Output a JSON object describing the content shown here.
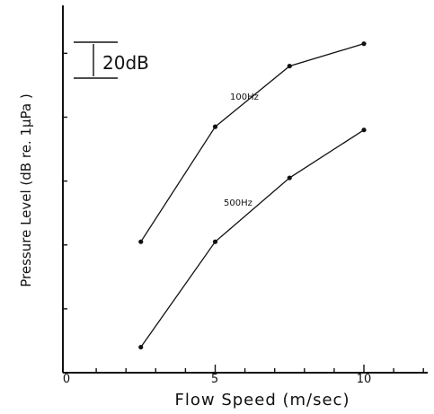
{
  "chart_data": {
    "type": "line",
    "xlabel": "Flow Speed (m/sec)",
    "ylabel": "Pressure Level (dB re. 1μPa  )",
    "xlim": [
      0,
      12.2
    ],
    "ylim": [
      0,
      115
    ],
    "grid": false,
    "x_tick_labels": [
      "0",
      "5",
      "10"
    ],
    "scale_bar": {
      "label": "20dB",
      "db": 20
    },
    "series": [
      {
        "name": "100Hz",
        "x": [
          2.5,
          5,
          7.5,
          10
        ],
        "y": [
          41,
          77,
          96,
          103
        ]
      },
      {
        "name": "500Hz",
        "x": [
          2.5,
          5,
          7.5,
          10
        ],
        "y": [
          8,
          41,
          61,
          76
        ]
      }
    ]
  }
}
